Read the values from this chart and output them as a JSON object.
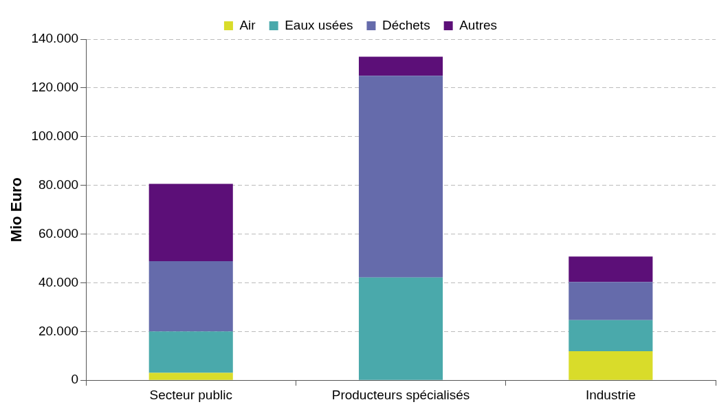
{
  "chart_data": {
    "type": "bar",
    "stacked": true,
    "ylabel": "Mio Euro",
    "categories": [
      "Secteur public",
      "Producteurs spécialisés",
      "Industrie"
    ],
    "series": [
      {
        "name": "Air",
        "color": "#d9dc2a",
        "values": [
          3000,
          0,
          11900
        ]
      },
      {
        "name": "Eaux usées",
        "color": "#4aa9ab",
        "values": [
          17000,
          42200,
          12800
        ]
      },
      {
        "name": "Déchets",
        "color": "#656bab",
        "values": [
          28900,
          82800,
          15600
        ]
      },
      {
        "name": "Autres",
        "color": "#5c0f78",
        "values": [
          31700,
          7800,
          10500
        ]
      }
    ],
    "ylim": [
      0,
      140000
    ],
    "yticks": [
      {
        "value": 0,
        "label": "0"
      },
      {
        "value": 20000,
        "label": "20.000"
      },
      {
        "value": 40000,
        "label": "40.000"
      },
      {
        "value": 60000,
        "label": "60.000"
      },
      {
        "value": 80000,
        "label": "80.000"
      },
      {
        "value": 100000,
        "label": "100.000"
      },
      {
        "value": 120000,
        "label": "120.000"
      },
      {
        "value": 140000,
        "label": "140.000"
      }
    ],
    "grid": "y",
    "legend": "top"
  }
}
